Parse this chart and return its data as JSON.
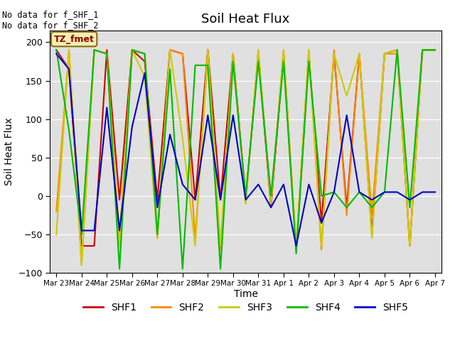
{
  "title": "Soil Heat Flux",
  "ylabel": "Soil Heat Flux",
  "xlabel": "Time",
  "ylim": [
    -100,
    215
  ],
  "yticks": [
    -100,
    -50,
    0,
    50,
    100,
    150,
    200
  ],
  "text_upper_left": "No data for f_SHF_1\nNo data for f_SHF_2",
  "legend_label": "TZ_fmet",
  "legend_box_facecolor": "#f5f0b0",
  "legend_box_edgecolor": "#8B6914",
  "background_color": "#e0e0e0",
  "series_order": [
    "SHF1",
    "SHF2",
    "SHF3",
    "SHF4",
    "SHF5"
  ],
  "series": {
    "SHF1": {
      "color": "#cc0000",
      "x": [
        0,
        1,
        2,
        3,
        4,
        5,
        6,
        7,
        8,
        9,
        10,
        11,
        12,
        13,
        14,
        15,
        16,
        17,
        18,
        19,
        20,
        21,
        22,
        23,
        24,
        25,
        26,
        27,
        28,
        29,
        30
      ],
      "y": [
        190,
        165,
        -65,
        -65,
        190,
        -5,
        190,
        175,
        -5,
        190,
        185,
        -5,
        190,
        -5,
        185,
        -5,
        185,
        -15,
        185,
        -70,
        185,
        -35,
        185,
        -15,
        185,
        -50,
        185,
        190,
        -65,
        190,
        190
      ]
    },
    "SHF2": {
      "color": "#ff8800",
      "x": [
        0,
        1,
        2,
        3,
        4,
        5,
        6,
        7,
        8,
        9,
        10,
        11,
        12,
        13,
        14,
        15,
        16,
        17,
        18,
        19,
        20,
        21,
        22,
        23,
        24,
        25,
        26,
        27,
        28,
        29,
        30
      ],
      "y": [
        -20,
        190,
        -90,
        190,
        185,
        -55,
        190,
        185,
        -55,
        190,
        185,
        -55,
        185,
        -70,
        185,
        -10,
        190,
        -10,
        190,
        -70,
        190,
        -70,
        190,
        -25,
        185,
        -25,
        185,
        185,
        -65,
        190,
        190
      ]
    },
    "SHF3": {
      "color": "#cccc00",
      "x": [
        0,
        1,
        2,
        3,
        4,
        5,
        6,
        7,
        8,
        9,
        10,
        11,
        12,
        13,
        14,
        15,
        16,
        17,
        18,
        19,
        20,
        21,
        22,
        23,
        24,
        25,
        26,
        27,
        28,
        29,
        30
      ],
      "y": [
        -50,
        190,
        -90,
        190,
        185,
        -65,
        190,
        155,
        -55,
        190,
        75,
        -65,
        190,
        -65,
        185,
        -10,
        190,
        -10,
        190,
        -65,
        190,
        -65,
        185,
        130,
        185,
        -55,
        185,
        190,
        -65,
        190,
        190
      ]
    },
    "SHF4": {
      "color": "#00bb00",
      "x": [
        0,
        1,
        2,
        3,
        4,
        5,
        6,
        7,
        8,
        9,
        10,
        11,
        12,
        13,
        14,
        15,
        16,
        17,
        18,
        19,
        20,
        21,
        22,
        23,
        24,
        25,
        26,
        27,
        28,
        29,
        30
      ],
      "y": [
        190,
        85,
        -50,
        190,
        185,
        -95,
        190,
        185,
        -50,
        165,
        -95,
        170,
        170,
        -95,
        175,
        0,
        175,
        0,
        175,
        -75,
        175,
        0,
        5,
        -15,
        5,
        -15,
        5,
        190,
        -15,
        190,
        190
      ]
    },
    "SHF5": {
      "color": "#0000cc",
      "x": [
        0,
        1,
        2,
        3,
        4,
        5,
        6,
        7,
        8,
        9,
        10,
        11,
        12,
        13,
        14,
        15,
        16,
        17,
        18,
        19,
        20,
        21,
        22,
        23,
        24,
        25,
        26,
        27,
        28,
        29,
        30
      ],
      "y": [
        185,
        165,
        -45,
        -45,
        115,
        -45,
        90,
        160,
        -15,
        80,
        15,
        -5,
        105,
        -5,
        105,
        -5,
        15,
        -15,
        15,
        -65,
        15,
        -35,
        5,
        105,
        5,
        -5,
        5,
        5,
        -5,
        5,
        5
      ]
    }
  },
  "xtick_labels": [
    "Mar 23",
    "Mar 24",
    "Mar 25",
    "Mar 26",
    "Mar 27",
    "Mar 28",
    "Mar 29",
    "Mar 30",
    "Mar 31",
    "Apr 1",
    "Apr 2",
    "Apr 3",
    "Apr 4",
    "Apr 5",
    "Apr 6",
    "Apr 7"
  ],
  "xtick_positions": [
    0,
    2,
    4,
    6,
    8,
    10,
    12,
    14,
    16,
    18,
    20,
    22,
    24,
    26,
    28,
    30
  ],
  "n_points": 31,
  "xlim": [
    -0.5,
    30.5
  ]
}
